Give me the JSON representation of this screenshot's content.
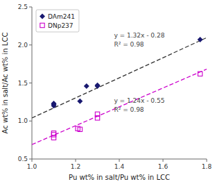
{
  "chart_data": {
    "type": "scatter",
    "xlabel": "Pu wt% in salt/Pu wt% in LCC",
    "ylabel": "Ac wt% in salt/Ac wt% in LCC",
    "xlim": [
      1.0,
      1.8
    ],
    "ylim": [
      0.5,
      2.5
    ],
    "xticks": [
      {
        "value": 1.0,
        "label": "1.0"
      },
      1.2,
      1.4,
      1.6,
      1.8
    ],
    "yticks": [
      0.5,
      {
        "value": 1.0,
        "label": "1.0"
      },
      1.5,
      {
        "value": 2.0,
        "label": "2.0"
      },
      2.5
    ],
    "grid": false,
    "legend": "upper-left",
    "series": [
      {
        "name": "DAm241",
        "type": "scatter",
        "marker": "diamond",
        "color": "#191970",
        "x": [
          1.1,
          1.1,
          1.1,
          1.22,
          1.25,
          1.3,
          1.3,
          1.77
        ],
        "values": [
          1.22,
          1.23,
          1.2,
          1.26,
          1.46,
          1.46,
          1.47,
          2.07
        ]
      },
      {
        "name": "DNp237",
        "type": "scatter",
        "marker": "open-square",
        "color": "#cc00cc",
        "x": [
          1.1,
          1.1,
          1.1,
          1.21,
          1.22,
          1.3,
          1.3,
          1.77
        ],
        "values": [
          0.84,
          0.82,
          0.78,
          0.9,
          0.89,
          1.04,
          1.09,
          1.62
        ]
      },
      {
        "type": "line",
        "line_style": "dashed",
        "color": "#333333",
        "x": [
          1.0,
          1.8
        ],
        "values": [
          1.04,
          2.096
        ]
      },
      {
        "type": "line",
        "line_style": "dashed",
        "color": "#cc00cc",
        "x": [
          1.0,
          1.8
        ],
        "values": [
          0.69,
          1.682
        ]
      }
    ],
    "annotations": [
      {
        "text": "y = 1.32x - 0.28"
      },
      {
        "text": "R² = 0.98"
      },
      {
        "text": "y = 1.24x - 0.55"
      },
      {
        "text": "R² = 0.98"
      }
    ]
  }
}
